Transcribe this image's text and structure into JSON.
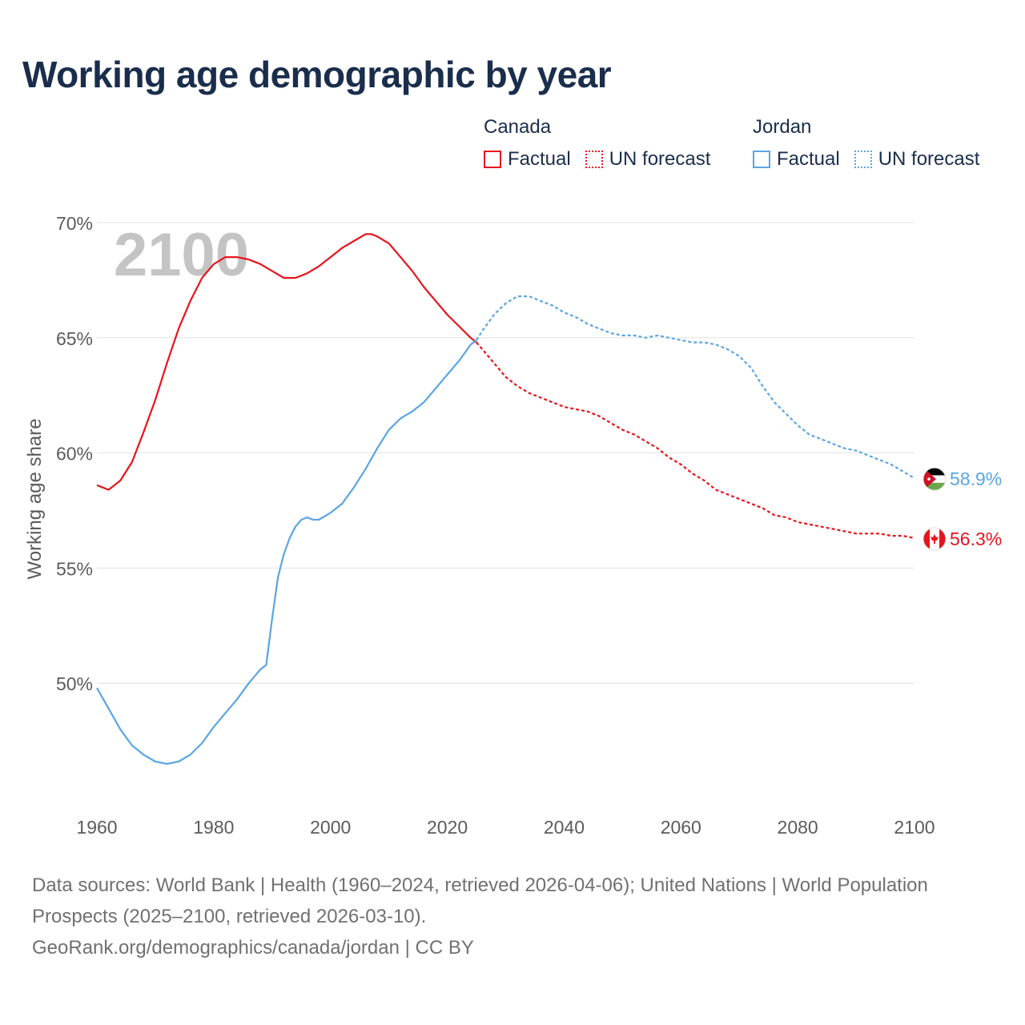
{
  "title": "Working age demographic by year",
  "legend": {
    "groups": [
      {
        "name": "Canada",
        "color": "#e8141b",
        "items": [
          {
            "label": "Factual",
            "style": "solid"
          },
          {
            "label": "UN forecast",
            "style": "dotted"
          }
        ]
      },
      {
        "name": "Jordan",
        "color": "#5aa5e4",
        "items": [
          {
            "label": "Factual",
            "style": "solid"
          },
          {
            "label": "UN forecast",
            "style": "dotted"
          }
        ]
      }
    ]
  },
  "year_overlay": "2100",
  "footer": {
    "sources": "Data sources: World Bank | Health (1960–2024, retrieved 2026-04-06); United Nations | World Population Prospects (2025–2100, retrieved 2026-03-10).",
    "credit": "GeoRank.org/demographics/canada/jordan | CC BY"
  },
  "chart_data": {
    "type": "line",
    "title": "Working age demographic by year",
    "xlabel": "",
    "ylabel": "Working age share",
    "xlim": [
      1960,
      2100
    ],
    "ylim": [
      45,
      70
    ],
    "x_ticks": [
      1960,
      1980,
      2000,
      2020,
      2040,
      2060,
      2080,
      2100
    ],
    "x_tick_labels": [
      "1960",
      "1980",
      "2000",
      "2020",
      "2040",
      "2060",
      "2080",
      "2100"
    ],
    "y_ticks": [
      50,
      55,
      60,
      65,
      70
    ],
    "y_tick_labels": [
      "50%",
      "55%",
      "60%",
      "65%",
      "70%"
    ],
    "grid": true,
    "series": [
      {
        "name": "Canada",
        "color": "#e8141b",
        "end_label": "56.3%",
        "end_icon": "canada-flag-icon",
        "factual": {
          "x": [
            1960,
            1962,
            1964,
            1966,
            1968,
            1970,
            1972,
            1974,
            1976,
            1978,
            1980,
            1982,
            1984,
            1986,
            1988,
            1990,
            1992,
            1994,
            1996,
            1998,
            2000,
            2002,
            2004,
            2006,
            2007,
            2008,
            2010,
            2012,
            2014,
            2016,
            2018,
            2020,
            2022,
            2024,
            2025
          ],
          "y": [
            58.6,
            58.4,
            58.8,
            59.6,
            60.9,
            62.3,
            63.9,
            65.4,
            66.6,
            67.6,
            68.2,
            68.5,
            68.5,
            68.4,
            68.2,
            67.9,
            67.6,
            67.6,
            67.8,
            68.1,
            68.5,
            68.9,
            69.2,
            69.5,
            69.5,
            69.4,
            69.1,
            68.5,
            67.9,
            67.2,
            66.6,
            66.0,
            65.5,
            65.0,
            64.8
          ]
        },
        "forecast": {
          "x": [
            2025,
            2026,
            2028,
            2030,
            2032,
            2034,
            2036,
            2038,
            2040,
            2042,
            2044,
            2046,
            2048,
            2050,
            2052,
            2054,
            2056,
            2058,
            2060,
            2062,
            2064,
            2066,
            2068,
            2070,
            2072,
            2074,
            2076,
            2078,
            2080,
            2082,
            2084,
            2086,
            2088,
            2090,
            2092,
            2094,
            2096,
            2098,
            2100
          ],
          "y": [
            64.8,
            64.5,
            63.9,
            63.3,
            62.9,
            62.6,
            62.4,
            62.2,
            62.0,
            61.9,
            61.8,
            61.6,
            61.3,
            61.0,
            60.8,
            60.5,
            60.2,
            59.8,
            59.5,
            59.1,
            58.8,
            58.4,
            58.2,
            58.0,
            57.8,
            57.6,
            57.3,
            57.2,
            57.0,
            56.9,
            56.8,
            56.7,
            56.6,
            56.5,
            56.5,
            56.5,
            56.4,
            56.4,
            56.3
          ]
        }
      },
      {
        "name": "Jordan",
        "color": "#5aa5e4",
        "end_label": "58.9%",
        "end_icon": "jordan-flag-icon",
        "factual": {
          "x": [
            1960,
            1962,
            1964,
            1966,
            1968,
            1970,
            1972,
            1974,
            1976,
            1978,
            1980,
            1982,
            1984,
            1986,
            1988,
            1989,
            1990,
            1991,
            1992,
            1993,
            1994,
            1995,
            1996,
            1997,
            1998,
            2000,
            2002,
            2004,
            2006,
            2008,
            2010,
            2012,
            2014,
            2016,
            2018,
            2020,
            2022,
            2024,
            2025
          ],
          "y": [
            49.8,
            48.9,
            48.0,
            47.3,
            46.9,
            46.6,
            46.5,
            46.6,
            46.9,
            47.4,
            48.1,
            48.7,
            49.3,
            50.0,
            50.6,
            50.8,
            52.8,
            54.6,
            55.6,
            56.3,
            56.8,
            57.1,
            57.2,
            57.1,
            57.1,
            57.4,
            57.8,
            58.5,
            59.3,
            60.2,
            61.0,
            61.5,
            61.8,
            62.2,
            62.8,
            63.4,
            64.0,
            64.7,
            64.9
          ]
        },
        "forecast": {
          "x": [
            2025,
            2026,
            2028,
            2030,
            2032,
            2034,
            2036,
            2038,
            2040,
            2042,
            2044,
            2046,
            2048,
            2050,
            2052,
            2054,
            2056,
            2058,
            2060,
            2062,
            2064,
            2066,
            2068,
            2070,
            2072,
            2074,
            2076,
            2078,
            2080,
            2082,
            2084,
            2086,
            2088,
            2090,
            2092,
            2094,
            2096,
            2098,
            2100
          ],
          "y": [
            64.9,
            65.3,
            66.0,
            66.5,
            66.8,
            66.8,
            66.6,
            66.4,
            66.1,
            65.9,
            65.6,
            65.4,
            65.2,
            65.1,
            65.1,
            65.0,
            65.1,
            65.0,
            64.9,
            64.8,
            64.8,
            64.7,
            64.5,
            64.2,
            63.7,
            62.9,
            62.2,
            61.7,
            61.2,
            60.8,
            60.6,
            60.4,
            60.2,
            60.1,
            59.9,
            59.7,
            59.5,
            59.2,
            58.9
          ]
        }
      }
    ]
  }
}
